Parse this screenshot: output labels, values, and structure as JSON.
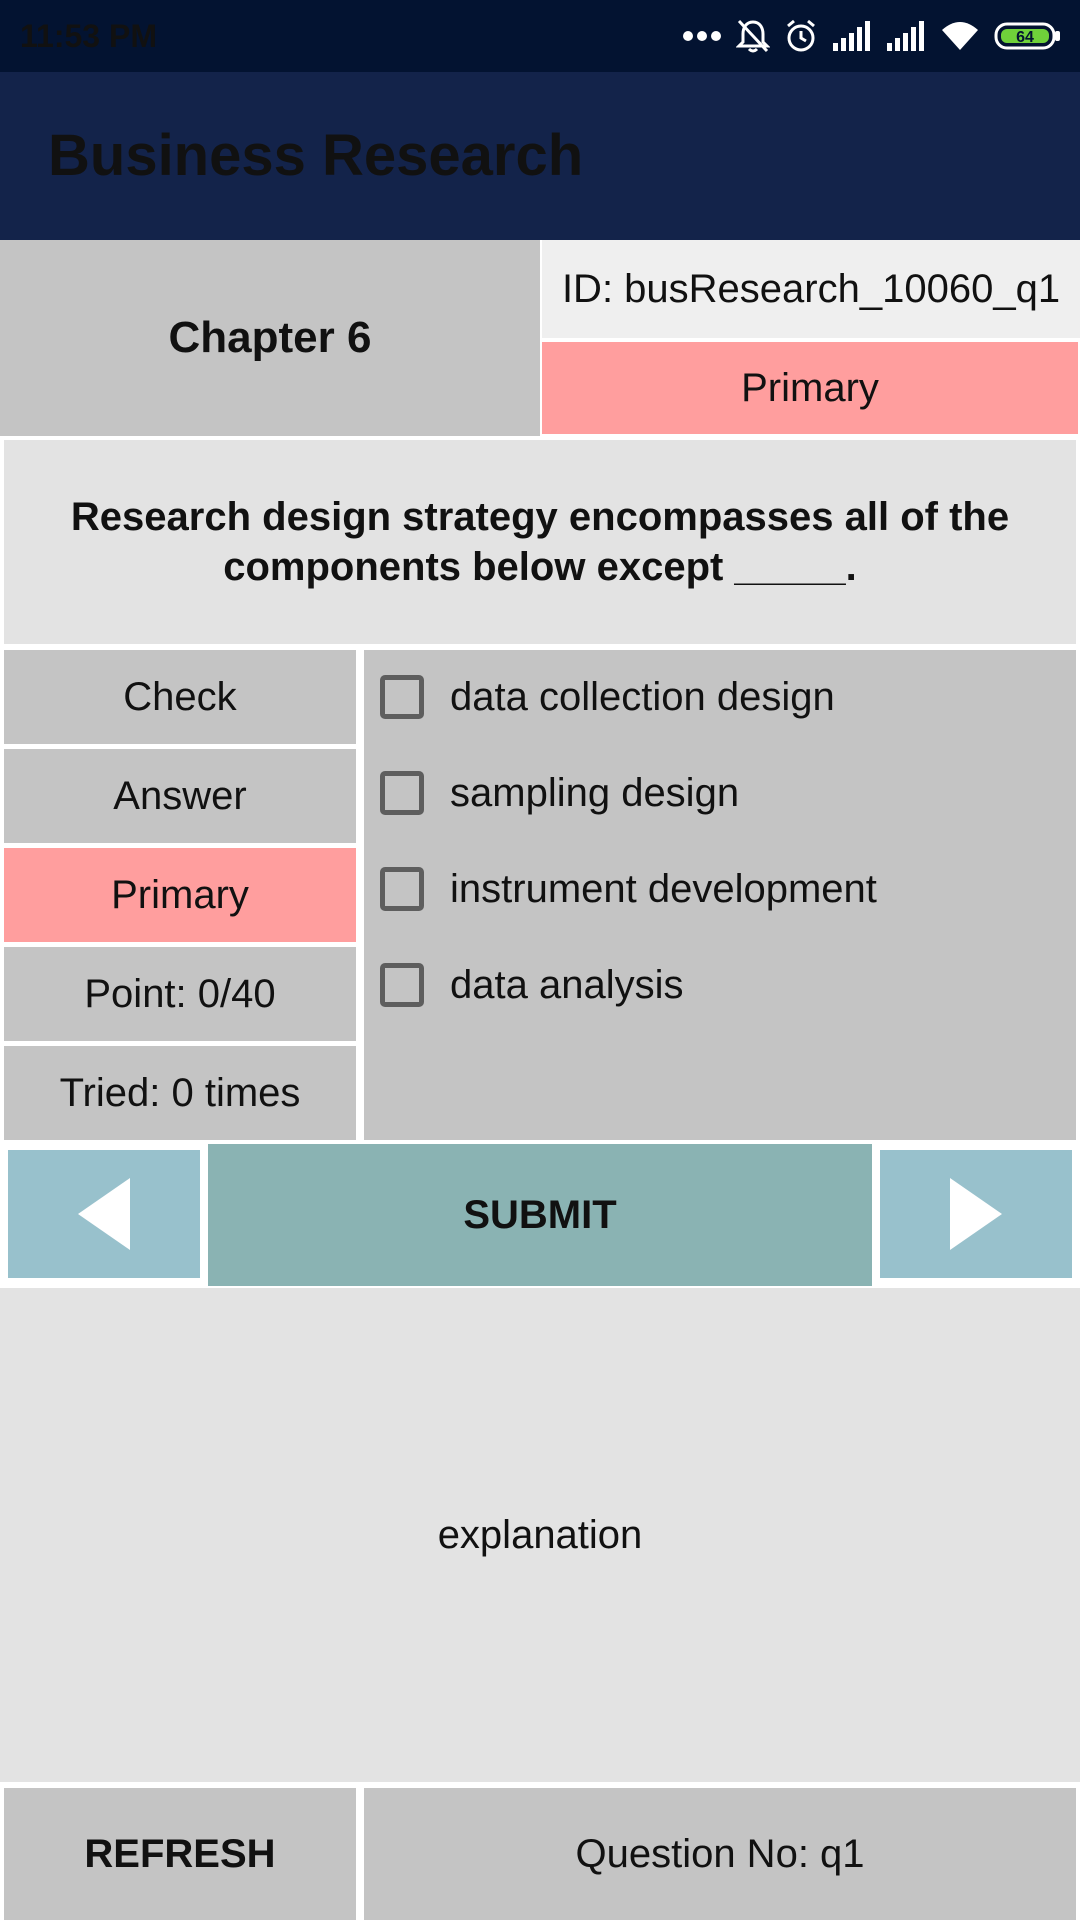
{
  "status_bar": {
    "time": "11:53 PM",
    "battery": "64",
    "icons": [
      "more-dots-icon",
      "mute-bell-icon",
      "alarm-icon",
      "signal-icon",
      "signal-icon",
      "wifi-icon",
      "battery-icon"
    ]
  },
  "app_bar": {
    "title": "Business Research"
  },
  "header": {
    "chapter": "Chapter 6",
    "id_label": "ID: busResearch_10060_q1",
    "type": "Primary"
  },
  "question": {
    "text": "Research design strategy encompasses all of the components below except _____."
  },
  "left_panel": {
    "check": "Check",
    "answer": "Answer",
    "primary": "Primary",
    "point": "Point: 0/40",
    "tried": "Tried: 0 times"
  },
  "options": [
    {
      "label": "data collection design",
      "checked": false
    },
    {
      "label": "sampling design",
      "checked": false
    },
    {
      "label": "instrument development",
      "checked": false
    },
    {
      "label": "data analysis",
      "checked": false
    }
  ],
  "nav": {
    "submit": "SUBMIT",
    "prev_icon": "triangle-left-icon",
    "next_icon": "triangle-right-icon"
  },
  "explanation": {
    "text": "explanation"
  },
  "footer": {
    "refresh": "REFRESH",
    "question_no": "Question No: q1"
  },
  "colors": {
    "status_bar": "#031331",
    "app_bar": "#13234a",
    "cell_gray": "#c4c4c4",
    "light_gray": "#e3e3e3",
    "primary_pink": "#ff9e9e",
    "nav_blue": "#98c1cc",
    "submit_teal": "#8ab3b3"
  }
}
